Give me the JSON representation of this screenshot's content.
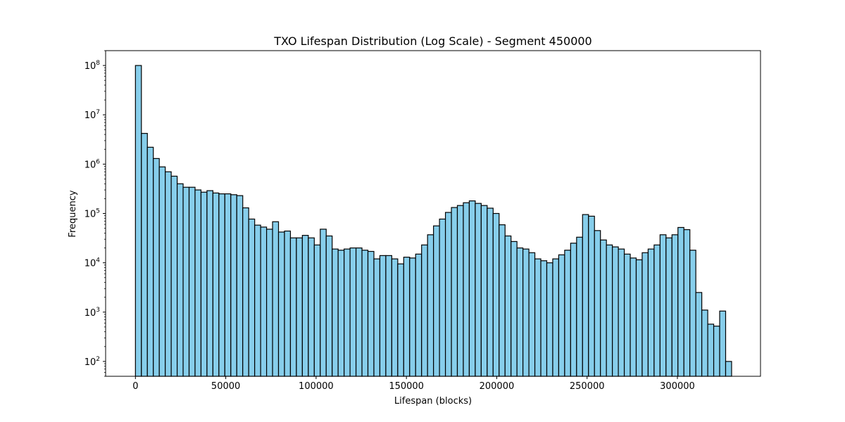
{
  "chart_data": {
    "type": "bar",
    "title": "TXO Lifespan Distribution (Log Scale) - Segment 450000",
    "xlabel": "Lifespan (blocks)",
    "ylabel": "Frequency",
    "xlim": [
      -16500,
      346000
    ],
    "ylim": [
      50,
      200000000
    ],
    "yscale": "log",
    "bin_start": 0,
    "bin_width": 3300,
    "bar_color": "#87CEEB",
    "edge_color": "#000000",
    "x_ticks": [
      0,
      50000,
      100000,
      150000,
      200000,
      250000,
      300000
    ],
    "x_tick_labels": [
      "0",
      "50000",
      "100000",
      "150000",
      "200000",
      "250000",
      "300000"
    ],
    "y_ticks": [
      100,
      1000,
      10000,
      100000,
      1000000,
      10000000,
      100000000
    ],
    "y_tick_labels": [
      {
        "base": "10",
        "exp": "2"
      },
      {
        "base": "10",
        "exp": "3"
      },
      {
        "base": "10",
        "exp": "4"
      },
      {
        "base": "10",
        "exp": "5"
      },
      {
        "base": "10",
        "exp": "6"
      },
      {
        "base": "10",
        "exp": "7"
      },
      {
        "base": "10",
        "exp": "8"
      }
    ],
    "values": [
      100000000,
      4200000,
      2200000,
      1300000,
      880000,
      700000,
      570000,
      400000,
      340000,
      340000,
      300000,
      270000,
      290000,
      260000,
      250000,
      250000,
      240000,
      230000,
      130000,
      77000,
      58000,
      53000,
      48000,
      68000,
      42000,
      44000,
      32000,
      32000,
      36000,
      32000,
      23000,
      48000,
      35000,
      19000,
      18000,
      19000,
      20000,
      20000,
      18000,
      17000,
      12000,
      14000,
      14000,
      12000,
      9500,
      13000,
      12500,
      15000,
      23000,
      37000,
      56000,
      77000,
      105000,
      132000,
      145000,
      165000,
      180000,
      160000,
      145000,
      128000,
      100000,
      59000,
      35000,
      27000,
      20000,
      19000,
      16000,
      12000,
      11000,
      10000,
      12000,
      14500,
      18000,
      25000,
      33000,
      95000,
      88000,
      45000,
      29000,
      23000,
      21000,
      19000,
      15000,
      12500,
      11500,
      16000,
      19000,
      23000,
      37000,
      32000,
      37000,
      52000,
      47000,
      18000,
      2500,
      1100,
      570,
      520,
      1050,
      100
    ]
  }
}
